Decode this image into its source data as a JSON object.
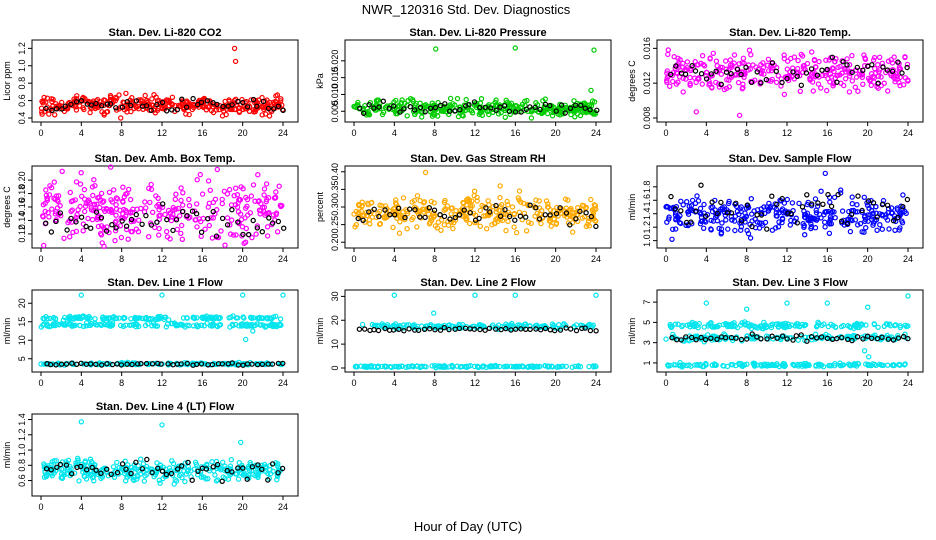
{
  "figure": {
    "title": "NWR_120316  Std. Dev. Diagnostics",
    "xlabel": "Hour of Day (UTC)"
  },
  "chart_data": [
    {
      "id": "co2",
      "type": "scatter",
      "title": "Stan. Dev. Li-820 CO2",
      "ylabel": "Licor ppm",
      "color": "#ff0000",
      "xlim": [
        0,
        24
      ],
      "xticks": [
        0,
        4,
        8,
        12,
        16,
        20,
        24
      ],
      "ylim": [
        0.4,
        1.25
      ],
      "yticks": [
        "0.4",
        "0.6",
        "0.8",
        "1.0",
        "1.2"
      ],
      "bulk": {
        "center": 0.55,
        "spread": 0.05
      },
      "black": {
        "center": 0.55,
        "spread": 0.04
      },
      "outliers": [
        {
          "x": 19.2,
          "y": 1.2
        },
        {
          "x": 19.3,
          "y": 1.05
        },
        {
          "x": 7.9,
          "y": 0.4
        }
      ]
    },
    {
      "id": "pressure",
      "type": "scatter",
      "title": "Stan. Dev. Li-820 Pressure",
      "ylabel": "kPa",
      "color": "#00cc00",
      "xlim": [
        0,
        24
      ],
      "xticks": [
        0,
        4,
        8,
        12,
        16,
        20,
        24
      ],
      "ylim": [
        0.003,
        0.025
      ],
      "yticks": [
        "0.005",
        "0.010",
        "0.015",
        "0.020"
      ],
      "bulk": {
        "center": 0.0058,
        "spread": 0.0012
      },
      "black": {
        "center": 0.006,
        "spread": 0.0008
      },
      "outliers": [
        {
          "x": 8.1,
          "y": 0.0235
        },
        {
          "x": 16.0,
          "y": 0.0238
        },
        {
          "x": 23.8,
          "y": 0.0232
        },
        {
          "x": 23.5,
          "y": 0.0112
        }
      ]
    },
    {
      "id": "li820temp",
      "type": "scatter",
      "title": "Stan. Dev. Li-820 Temp.",
      "ylabel": "degrees C",
      "color": "#ff00ff",
      "xlim": [
        0,
        24
      ],
      "xticks": [
        0,
        4,
        8,
        12,
        16,
        20,
        24
      ],
      "ylim": [
        0.008,
        0.0165
      ],
      "yticks": [
        "0.008",
        "0.012",
        "0.016"
      ],
      "bulk": {
        "center": 0.0133,
        "spread": 0.0011
      },
      "black": {
        "center": 0.0133,
        "spread": 0.0008
      },
      "outliers": [
        {
          "x": 3.0,
          "y": 0.0087
        },
        {
          "x": 7.3,
          "y": 0.0083
        }
      ]
    },
    {
      "id": "ambbox",
      "type": "scatter",
      "title": "Stan. Dev. Amb. Box Temp.",
      "ylabel": "degrees C",
      "color": "#ff00ff",
      "xlim": [
        0,
        24
      ],
      "xticks": [
        0,
        4,
        8,
        12,
        16,
        20,
        24
      ],
      "ylim": [
        0.105,
        0.215
      ],
      "yticks": [
        "0.12",
        "0.14",
        "0.16",
        "0.18",
        "0.20"
      ],
      "bulk": {
        "center": 0.155,
        "spread": 0.022
      },
      "black": {
        "center": 0.135,
        "spread": 0.012
      },
      "outliers": [
        {
          "x": 2.1,
          "y": 0.213
        },
        {
          "x": 21.5,
          "y": 0.208
        }
      ]
    },
    {
      "id": "rh",
      "type": "scatter",
      "title": "Stan. Dev. Gas Stream RH",
      "ylabel": "percent",
      "color": "#ffaa00",
      "xlim": [
        0,
        24
      ],
      "xticks": [
        0,
        4,
        8,
        12,
        16,
        20,
        24
      ],
      "ylim": [
        0.195,
        0.405
      ],
      "yticks": [
        "0.20",
        "0.25",
        "0.30",
        "0.35",
        "0.40"
      ],
      "bulk": {
        "center": 0.283,
        "spread": 0.022
      },
      "black": {
        "center": 0.278,
        "spread": 0.015
      },
      "outliers": [
        {
          "x": 7.1,
          "y": 0.398
        },
        {
          "x": 14.5,
          "y": 0.36
        }
      ]
    },
    {
      "id": "sampleflow",
      "type": "scatter",
      "title": "Stan. Dev. Sample Flow",
      "ylabel": "ml/min",
      "color": "#0000ff",
      "xlim": [
        0,
        24
      ],
      "xticks": [
        0,
        4,
        8,
        12,
        16,
        20,
        24
      ],
      "ylim": [
        0.95,
        2.05
      ],
      "yticks": [
        "1.0",
        "1.2",
        "1.4",
        "1.6",
        "1.8"
      ],
      "bulk": {
        "center": 1.38,
        "spread": 0.13
      },
      "black": {
        "center": 1.5,
        "spread": 0.15
      },
      "outliers": [
        {
          "x": 15.8,
          "y": 2.0
        },
        {
          "x": 0.6,
          "y": 1.02
        }
      ]
    },
    {
      "id": "line1",
      "type": "scatter",
      "title": "Stan. Dev. Line 1 Flow",
      "ylabel": "ml/min",
      "color": "#00e5ee",
      "xlim": [
        0,
        24
      ],
      "xticks": [
        0,
        4,
        8,
        12,
        16,
        20,
        24
      ],
      "ylim": [
        2.5,
        22.5
      ],
      "yticks": [
        "5",
        "10",
        "15",
        "20"
      ],
      "bands": [
        {
          "center": 16.0,
          "spread": 0.25
        },
        {
          "center": 14.1,
          "spread": 0.25
        },
        {
          "center": 3.6,
          "spread": 0.15
        }
      ],
      "black": {
        "center": 3.6,
        "spread": 0.15
      },
      "outliers": [
        {
          "x": 4.0,
          "y": 22.2
        },
        {
          "x": 12.0,
          "y": 22.2
        },
        {
          "x": 20.0,
          "y": 22.2
        },
        {
          "x": 24.0,
          "y": 22.2
        },
        {
          "x": 20.3,
          "y": 10.2
        },
        {
          "x": 21.0,
          "y": 12.5
        }
      ]
    },
    {
      "id": "line2",
      "type": "scatter",
      "title": "Stan. Dev. Line 2 Flow",
      "ylabel": "ml/min",
      "color": "#00e5ee",
      "xlim": [
        0,
        24
      ],
      "xticks": [
        0,
        4,
        8,
        12,
        16,
        20,
        24
      ],
      "ylim": [
        0,
        31
      ],
      "yticks": [
        "0",
        "10",
        "20",
        "30"
      ],
      "bands": [
        {
          "center": 17.5,
          "spread": 0.5
        },
        {
          "center": 0.6,
          "spread": 0.2
        }
      ],
      "black": {
        "center": 16.2,
        "spread": 0.3
      },
      "outliers": [
        {
          "x": 4.0,
          "y": 30.5
        },
        {
          "x": 12.0,
          "y": 30.5
        },
        {
          "x": 16.0,
          "y": 30.5
        },
        {
          "x": 24.0,
          "y": 30.5
        },
        {
          "x": 7.9,
          "y": 23.0
        }
      ]
    },
    {
      "id": "line3",
      "type": "scatter",
      "title": "Stan. Dev. Line 3 Flow",
      "ylabel": "ml/min",
      "color": "#00e5ee",
      "xlim": [
        0,
        24
      ],
      "xticks": [
        0,
        4,
        8,
        12,
        16,
        20,
        24
      ],
      "ylim": [
        0.5,
        7.8
      ],
      "yticks": [
        "1",
        "3",
        "5",
        "7"
      ],
      "bands": [
        {
          "center": 4.7,
          "spread": 0.15
        },
        {
          "center": 3.5,
          "spread": 0.15
        },
        {
          "center": 0.8,
          "spread": 0.08
        }
      ],
      "black": {
        "center": 3.4,
        "spread": 0.15
      },
      "outliers": [
        {
          "x": 4.0,
          "y": 6.9
        },
        {
          "x": 8.0,
          "y": 6.3
        },
        {
          "x": 12.0,
          "y": 6.9
        },
        {
          "x": 16.0,
          "y": 6.9
        },
        {
          "x": 20.0,
          "y": 6.5
        },
        {
          "x": 24.0,
          "y": 7.6
        },
        {
          "x": 20.1,
          "y": 1.6
        },
        {
          "x": 19.7,
          "y": 2.2
        }
      ]
    },
    {
      "id": "line4",
      "type": "scatter",
      "title": "Stan. Dev. Line 4 (LT) Flow",
      "ylabel": "ml/min",
      "color": "#00e5ee",
      "xlim": [
        0,
        24
      ],
      "xticks": [
        0,
        4,
        8,
        12,
        16,
        20,
        24
      ],
      "ylim": [
        0.45,
        1.42
      ],
      "yticks": [
        "0.6",
        "0.8",
        "1.0",
        "1.2",
        "1.4"
      ],
      "bulk": {
        "center": 0.73,
        "spread": 0.07
      },
      "black": {
        "center": 0.74,
        "spread": 0.06
      },
      "outliers": [
        {
          "x": 4.0,
          "y": 1.37
        },
        {
          "x": 12.0,
          "y": 1.33
        },
        {
          "x": 19.8,
          "y": 1.1
        }
      ]
    }
  ]
}
